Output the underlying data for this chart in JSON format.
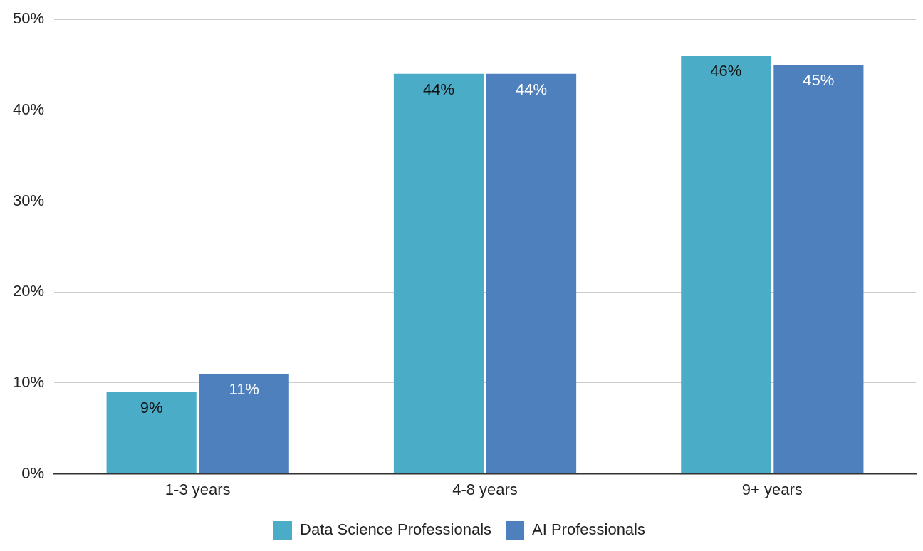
{
  "chart_data": {
    "type": "bar",
    "categories": [
      "1-3 years",
      "4-8 years",
      "9+ years"
    ],
    "series": [
      {
        "name": "Data Science Professionals",
        "color": "#4aacc6",
        "values": [
          9,
          44,
          46
        ],
        "value_labels": [
          "9%",
          "44%",
          "46%"
        ]
      },
      {
        "name": "AI Professionals",
        "color": "#4e80bd",
        "values": [
          11,
          44,
          45
        ],
        "value_labels": [
          "11%",
          "44%",
          "45%"
        ]
      }
    ],
    "ylim": [
      0,
      50
    ],
    "yticks": [
      {
        "value": 0,
        "label": "0%"
      },
      {
        "value": 10,
        "label": "10%"
      },
      {
        "value": 20,
        "label": "20%"
      },
      {
        "value": 30,
        "label": "30%"
      },
      {
        "value": 40,
        "label": "40%"
      },
      {
        "value": 50,
        "label": "50%"
      }
    ],
    "grid": "y",
    "legend": "bottom"
  }
}
